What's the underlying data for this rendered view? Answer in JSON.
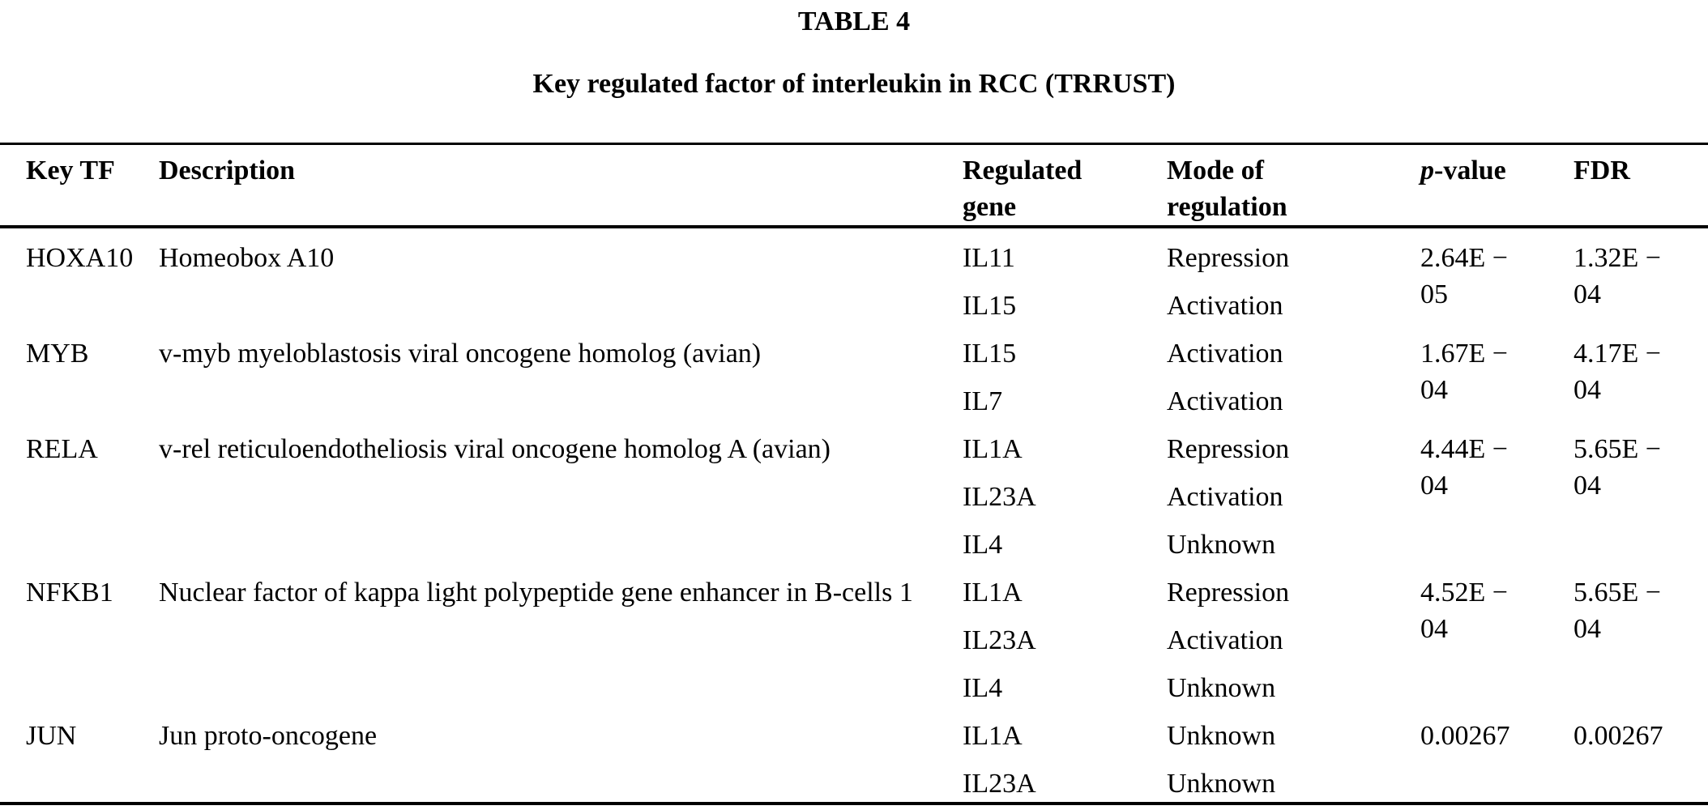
{
  "page": {
    "label": "TABLE 4",
    "caption": "Key regulated factor of interleukin in RCC (TRRUST)"
  },
  "header": {
    "key_tf": "Key TF",
    "description": "Description",
    "regulated_gene": "Regulated gene",
    "mode_of_regulation": "Mode of regulation",
    "p_value_italic": "p",
    "p_value_rest": "-value",
    "fdr": "FDR"
  },
  "rows": [
    {
      "tf": "HOXA10",
      "description": "Homeobox A10",
      "genes": [
        {
          "gene": "IL11",
          "mode": "Repression"
        },
        {
          "gene": "IL15",
          "mode": "Activation"
        }
      ],
      "p_value": "2.64E − 05",
      "fdr": "1.32E − 04"
    },
    {
      "tf": "MYB",
      "description": "v-myb myeloblastosis viral oncogene homolog (avian)",
      "genes": [
        {
          "gene": "IL15",
          "mode": "Activation"
        },
        {
          "gene": "IL7",
          "mode": "Activation"
        }
      ],
      "p_value": "1.67E − 04",
      "fdr": "4.17E − 04"
    },
    {
      "tf": "RELA",
      "description": "v-rel reticuloendotheliosis viral oncogene homolog A (avian)",
      "genes": [
        {
          "gene": "IL1A",
          "mode": "Repression"
        },
        {
          "gene": "IL23A",
          "mode": "Activation"
        },
        {
          "gene": "IL4",
          "mode": "Unknown"
        }
      ],
      "p_value": "4.44E − 04",
      "fdr": "5.65E − 04"
    },
    {
      "tf": "NFKB1",
      "description": "Nuclear factor of kappa light polypeptide gene enhancer in B-cells 1",
      "genes": [
        {
          "gene": "IL1A",
          "mode": "Repression"
        },
        {
          "gene": "IL23A",
          "mode": "Activation"
        },
        {
          "gene": "IL4",
          "mode": "Unknown"
        }
      ],
      "p_value": "4.52E − 04",
      "fdr": "5.65E − 04"
    },
    {
      "tf": "JUN",
      "description": "Jun proto-oncogene",
      "genes": [
        {
          "gene": "IL1A",
          "mode": "Unknown"
        },
        {
          "gene": "IL23A",
          "mode": "Unknown"
        }
      ],
      "p_value": "0.00267",
      "fdr": "0.00267"
    }
  ]
}
